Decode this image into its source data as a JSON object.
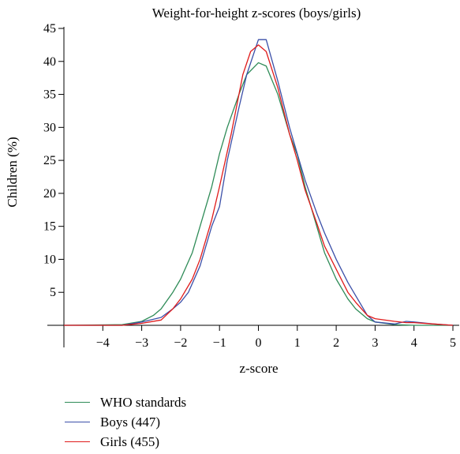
{
  "chart_data": {
    "type": "line",
    "title": "Weight-for-height z-scores (boys/girls)",
    "xlabel": "z-score",
    "ylabel": "Children (%)",
    "xlim": [
      -5,
      5
    ],
    "ylim": [
      0,
      45
    ],
    "xticks": [
      -4,
      -3,
      -2,
      -1,
      0,
      1,
      2,
      3,
      4,
      5
    ],
    "yticks": [
      5,
      10,
      15,
      20,
      25,
      30,
      35,
      40,
      45
    ],
    "grid": false,
    "legend_position": "bottom-left",
    "series": [
      {
        "name": "WHO standards",
        "color": "#2e8b57",
        "points": [
          [
            -5,
            0
          ],
          [
            -3.5,
            0.1
          ],
          [
            -3,
            0.6
          ],
          [
            -2.7,
            1.5
          ],
          [
            -2.5,
            2.5
          ],
          [
            -2.2,
            5
          ],
          [
            -2,
            7
          ],
          [
            -1.7,
            11
          ],
          [
            -1.5,
            15
          ],
          [
            -1.2,
            21
          ],
          [
            -1,
            26
          ],
          [
            -0.8,
            30
          ],
          [
            -0.5,
            35
          ],
          [
            -0.3,
            38
          ],
          [
            0,
            39.8
          ],
          [
            0.2,
            39.3
          ],
          [
            0.5,
            35
          ],
          [
            0.8,
            29
          ],
          [
            1,
            25.8
          ],
          [
            1.2,
            21
          ],
          [
            1.5,
            15
          ],
          [
            1.7,
            11
          ],
          [
            2,
            7
          ],
          [
            2.3,
            4
          ],
          [
            2.5,
            2.5
          ],
          [
            2.8,
            1
          ],
          [
            3,
            0.5
          ],
          [
            3.5,
            0.1
          ],
          [
            4,
            0
          ],
          [
            5,
            0
          ]
        ]
      },
      {
        "name": "Boys (447)",
        "color": "#3b4fa8",
        "points": [
          [
            -5,
            0
          ],
          [
            -3.5,
            0
          ],
          [
            -3,
            0.5
          ],
          [
            -2.5,
            1.2
          ],
          [
            -2.2,
            2.5
          ],
          [
            -2,
            3.5
          ],
          [
            -1.8,
            5
          ],
          [
            -1.5,
            9
          ],
          [
            -1.2,
            15
          ],
          [
            -1,
            18
          ],
          [
            -0.8,
            25
          ],
          [
            -0.5,
            33
          ],
          [
            -0.3,
            38
          ],
          [
            0,
            43.3
          ],
          [
            0.2,
            43.3
          ],
          [
            0.5,
            37
          ],
          [
            0.8,
            30
          ],
          [
            1,
            26
          ],
          [
            1.2,
            22
          ],
          [
            1.5,
            17
          ],
          [
            1.7,
            14
          ],
          [
            2,
            10
          ],
          [
            2.3,
            6.5
          ],
          [
            2.5,
            4.5
          ],
          [
            2.8,
            1.5
          ],
          [
            3,
            0.5
          ],
          [
            3.5,
            0.2
          ],
          [
            3.8,
            0.6
          ],
          [
            4,
            0.5
          ],
          [
            4.5,
            0.2
          ],
          [
            5,
            0
          ]
        ]
      },
      {
        "name": "Girls (455)",
        "color": "#e01b1b",
        "points": [
          [
            -5,
            0
          ],
          [
            -3.5,
            0
          ],
          [
            -3,
            0.3
          ],
          [
            -2.5,
            0.8
          ],
          [
            -2.2,
            2.5
          ],
          [
            -2,
            4
          ],
          [
            -1.7,
            7
          ],
          [
            -1.5,
            10
          ],
          [
            -1.2,
            16
          ],
          [
            -1,
            21
          ],
          [
            -0.7,
            29
          ],
          [
            -0.4,
            38
          ],
          [
            -0.2,
            41.5
          ],
          [
            0,
            42.5
          ],
          [
            0.2,
            41.5
          ],
          [
            0.5,
            36
          ],
          [
            0.8,
            29
          ],
          [
            1,
            25
          ],
          [
            1.2,
            20.5
          ],
          [
            1.5,
            15.5
          ],
          [
            1.7,
            12
          ],
          [
            2,
            8.5
          ],
          [
            2.3,
            5
          ],
          [
            2.5,
            3.5
          ],
          [
            2.8,
            1.5
          ],
          [
            3,
            1
          ],
          [
            3.5,
            0.6
          ],
          [
            3.8,
            0.4
          ],
          [
            4,
            0.4
          ],
          [
            4.5,
            0.2
          ],
          [
            5,
            0
          ]
        ]
      }
    ]
  }
}
